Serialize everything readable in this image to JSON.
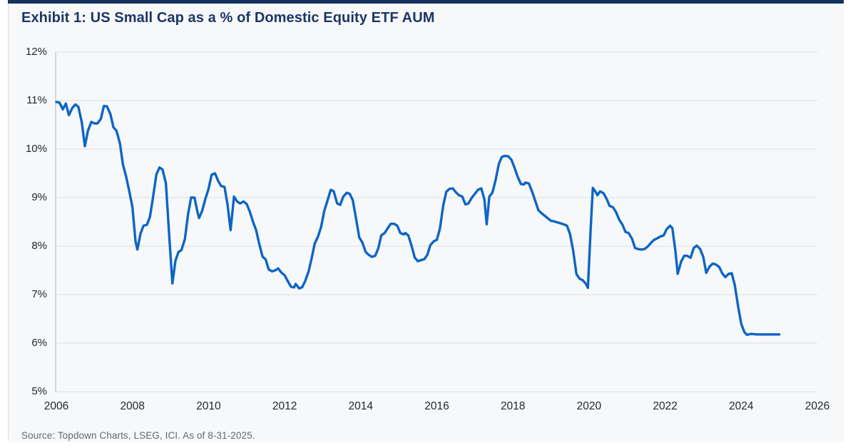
{
  "chart_data": {
    "type": "line",
    "title": "Exhibit 1: US Small Cap as a % of Domestic Equity ETF AUM",
    "source_note": "Source: Topdown Charts, LSEG, ICI. As of 8-31-2025.",
    "xlabel": "",
    "ylabel": "",
    "xlim": [
      2006,
      2026
    ],
    "ylim": [
      5,
      12
    ],
    "grid": "horizontal",
    "legend_position": "none",
    "line_color": "#0d65c5",
    "accent_color": "#16335f",
    "title_color": "#1b3666",
    "x_ticks": [
      {
        "label": "2006",
        "value": 2006
      },
      {
        "label": "2008",
        "value": 2008
      },
      {
        "label": "2010",
        "value": 2010
      },
      {
        "label": "2012",
        "value": 2012
      },
      {
        "label": "2014",
        "value": 2014
      },
      {
        "label": "2016",
        "value": 2016
      },
      {
        "label": "2018",
        "value": 2018
      },
      {
        "label": "2020",
        "value": 2020
      },
      {
        "label": "2022",
        "value": 2022
      },
      {
        "label": "2024",
        "value": 2024
      },
      {
        "label": "2026",
        "value": 2026
      }
    ],
    "y_ticks": [
      {
        "label": "12%",
        "value": 12
      },
      {
        "label": "11%",
        "value": 11
      },
      {
        "label": "10%",
        "value": 10
      },
      {
        "label": "9%",
        "value": 9
      },
      {
        "label": "8%",
        "value": 8
      },
      {
        "label": "7%",
        "value": 7
      },
      {
        "label": "6%",
        "value": 6
      },
      {
        "label": "5%",
        "value": 5
      }
    ],
    "series": [
      {
        "name": "US Small Cap % of Domestic Equity ETF AUM",
        "points": [
          [
            2006.0,
            10.97
          ],
          [
            2006.08,
            10.96
          ],
          [
            2006.17,
            10.82
          ],
          [
            2006.25,
            10.94
          ],
          [
            2006.33,
            10.7
          ],
          [
            2006.42,
            10.85
          ],
          [
            2006.5,
            10.92
          ],
          [
            2006.58,
            10.87
          ],
          [
            2006.67,
            10.55
          ],
          [
            2006.75,
            10.06
          ],
          [
            2006.83,
            10.38
          ],
          [
            2006.92,
            10.56
          ],
          [
            2007.0,
            10.53
          ],
          [
            2007.08,
            10.53
          ],
          [
            2007.17,
            10.62
          ],
          [
            2007.25,
            10.89
          ],
          [
            2007.33,
            10.88
          ],
          [
            2007.42,
            10.72
          ],
          [
            2007.5,
            10.45
          ],
          [
            2007.58,
            10.38
          ],
          [
            2007.67,
            10.12
          ],
          [
            2007.75,
            9.68
          ],
          [
            2007.83,
            9.45
          ],
          [
            2007.92,
            9.12
          ],
          [
            2008.0,
            8.8
          ],
          [
            2008.08,
            8.1
          ],
          [
            2008.13,
            7.93
          ],
          [
            2008.21,
            8.25
          ],
          [
            2008.29,
            8.42
          ],
          [
            2008.38,
            8.44
          ],
          [
            2008.46,
            8.6
          ],
          [
            2008.54,
            9.0
          ],
          [
            2008.63,
            9.48
          ],
          [
            2008.71,
            9.62
          ],
          [
            2008.79,
            9.58
          ],
          [
            2008.88,
            9.3
          ],
          [
            2008.96,
            8.3
          ],
          [
            2009.05,
            7.23
          ],
          [
            2009.13,
            7.7
          ],
          [
            2009.21,
            7.88
          ],
          [
            2009.29,
            7.92
          ],
          [
            2009.38,
            8.15
          ],
          [
            2009.46,
            8.65
          ],
          [
            2009.54,
            9.0
          ],
          [
            2009.63,
            9.0
          ],
          [
            2009.71,
            8.7
          ],
          [
            2009.75,
            8.58
          ],
          [
            2009.83,
            8.72
          ],
          [
            2009.92,
            8.98
          ],
          [
            2010.0,
            9.18
          ],
          [
            2010.08,
            9.47
          ],
          [
            2010.17,
            9.5
          ],
          [
            2010.25,
            9.35
          ],
          [
            2010.33,
            9.24
          ],
          [
            2010.42,
            9.22
          ],
          [
            2010.5,
            8.85
          ],
          [
            2010.58,
            8.33
          ],
          [
            2010.67,
            9.02
          ],
          [
            2010.75,
            8.92
          ],
          [
            2010.83,
            8.88
          ],
          [
            2010.92,
            8.92
          ],
          [
            2011.0,
            8.87
          ],
          [
            2011.08,
            8.72
          ],
          [
            2011.17,
            8.5
          ],
          [
            2011.25,
            8.33
          ],
          [
            2011.33,
            8.05
          ],
          [
            2011.42,
            7.78
          ],
          [
            2011.5,
            7.73
          ],
          [
            2011.58,
            7.52
          ],
          [
            2011.67,
            7.48
          ],
          [
            2011.75,
            7.5
          ],
          [
            2011.83,
            7.54
          ],
          [
            2011.92,
            7.45
          ],
          [
            2012.0,
            7.4
          ],
          [
            2012.08,
            7.28
          ],
          [
            2012.17,
            7.16
          ],
          [
            2012.25,
            7.15
          ],
          [
            2012.29,
            7.22
          ],
          [
            2012.38,
            7.13
          ],
          [
            2012.46,
            7.15
          ],
          [
            2012.54,
            7.28
          ],
          [
            2012.63,
            7.48
          ],
          [
            2012.71,
            7.75
          ],
          [
            2012.79,
            8.05
          ],
          [
            2012.88,
            8.2
          ],
          [
            2012.96,
            8.4
          ],
          [
            2013.04,
            8.72
          ],
          [
            2013.13,
            8.95
          ],
          [
            2013.21,
            9.16
          ],
          [
            2013.29,
            9.13
          ],
          [
            2013.38,
            8.88
          ],
          [
            2013.46,
            8.85
          ],
          [
            2013.54,
            9.02
          ],
          [
            2013.63,
            9.1
          ],
          [
            2013.71,
            9.08
          ],
          [
            2013.79,
            8.95
          ],
          [
            2013.88,
            8.55
          ],
          [
            2013.96,
            8.18
          ],
          [
            2014.04,
            8.08
          ],
          [
            2014.13,
            7.88
          ],
          [
            2014.21,
            7.82
          ],
          [
            2014.29,
            7.78
          ],
          [
            2014.38,
            7.8
          ],
          [
            2014.46,
            7.95
          ],
          [
            2014.54,
            8.22
          ],
          [
            2014.63,
            8.27
          ],
          [
            2014.71,
            8.37
          ],
          [
            2014.79,
            8.46
          ],
          [
            2014.88,
            8.46
          ],
          [
            2014.96,
            8.42
          ],
          [
            2015.04,
            8.27
          ],
          [
            2015.13,
            8.24
          ],
          [
            2015.17,
            8.27
          ],
          [
            2015.25,
            8.22
          ],
          [
            2015.33,
            8.02
          ],
          [
            2015.42,
            7.76
          ],
          [
            2015.5,
            7.69
          ],
          [
            2015.58,
            7.71
          ],
          [
            2015.67,
            7.73
          ],
          [
            2015.75,
            7.82
          ],
          [
            2015.83,
            8.02
          ],
          [
            2015.92,
            8.1
          ],
          [
            2016.0,
            8.13
          ],
          [
            2016.08,
            8.36
          ],
          [
            2016.17,
            8.85
          ],
          [
            2016.25,
            9.12
          ],
          [
            2016.33,
            9.18
          ],
          [
            2016.42,
            9.19
          ],
          [
            2016.5,
            9.11
          ],
          [
            2016.58,
            9.05
          ],
          [
            2016.67,
            9.02
          ],
          [
            2016.75,
            8.86
          ],
          [
            2016.83,
            8.88
          ],
          [
            2016.92,
            9.0
          ],
          [
            2017.0,
            9.08
          ],
          [
            2017.08,
            9.16
          ],
          [
            2017.17,
            9.19
          ],
          [
            2017.25,
            8.96
          ],
          [
            2017.31,
            8.45
          ],
          [
            2017.38,
            9.02
          ],
          [
            2017.46,
            9.1
          ],
          [
            2017.54,
            9.35
          ],
          [
            2017.63,
            9.7
          ],
          [
            2017.71,
            9.84
          ],
          [
            2017.79,
            9.86
          ],
          [
            2017.88,
            9.85
          ],
          [
            2017.96,
            9.78
          ],
          [
            2018.04,
            9.62
          ],
          [
            2018.13,
            9.42
          ],
          [
            2018.21,
            9.28
          ],
          [
            2018.29,
            9.27
          ],
          [
            2018.33,
            9.31
          ],
          [
            2018.42,
            9.29
          ],
          [
            2018.5,
            9.13
          ],
          [
            2018.58,
            8.95
          ],
          [
            2018.67,
            8.74
          ],
          [
            2018.75,
            8.68
          ],
          [
            2018.83,
            8.63
          ],
          [
            2018.92,
            8.57
          ],
          [
            2019.0,
            8.52
          ],
          [
            2019.08,
            8.51
          ],
          [
            2019.17,
            8.49
          ],
          [
            2019.25,
            8.47
          ],
          [
            2019.33,
            8.45
          ],
          [
            2019.42,
            8.42
          ],
          [
            2019.5,
            8.25
          ],
          [
            2019.58,
            7.92
          ],
          [
            2019.67,
            7.42
          ],
          [
            2019.75,
            7.33
          ],
          [
            2019.83,
            7.3
          ],
          [
            2019.92,
            7.22
          ],
          [
            2019.97,
            7.14
          ],
          [
            2020.04,
            8.3
          ],
          [
            2020.1,
            9.2
          ],
          [
            2020.17,
            9.12
          ],
          [
            2020.22,
            9.05
          ],
          [
            2020.29,
            9.13
          ],
          [
            2020.38,
            9.09
          ],
          [
            2020.46,
            8.98
          ],
          [
            2020.54,
            8.83
          ],
          [
            2020.63,
            8.8
          ],
          [
            2020.71,
            8.7
          ],
          [
            2020.79,
            8.55
          ],
          [
            2020.88,
            8.44
          ],
          [
            2020.96,
            8.29
          ],
          [
            2021.04,
            8.27
          ],
          [
            2021.13,
            8.15
          ],
          [
            2021.21,
            7.96
          ],
          [
            2021.29,
            7.94
          ],
          [
            2021.38,
            7.93
          ],
          [
            2021.46,
            7.94
          ],
          [
            2021.54,
            7.99
          ],
          [
            2021.63,
            8.07
          ],
          [
            2021.71,
            8.13
          ],
          [
            2021.79,
            8.16
          ],
          [
            2021.88,
            8.2
          ],
          [
            2021.96,
            8.22
          ],
          [
            2022.04,
            8.35
          ],
          [
            2022.13,
            8.42
          ],
          [
            2022.19,
            8.37
          ],
          [
            2022.27,
            7.9
          ],
          [
            2022.33,
            7.43
          ],
          [
            2022.42,
            7.68
          ],
          [
            2022.5,
            7.8
          ],
          [
            2022.58,
            7.8
          ],
          [
            2022.67,
            7.76
          ],
          [
            2022.75,
            7.96
          ],
          [
            2022.83,
            8.01
          ],
          [
            2022.92,
            7.94
          ],
          [
            2023.0,
            7.78
          ],
          [
            2023.08,
            7.45
          ],
          [
            2023.17,
            7.58
          ],
          [
            2023.25,
            7.64
          ],
          [
            2023.33,
            7.62
          ],
          [
            2023.42,
            7.57
          ],
          [
            2023.5,
            7.44
          ],
          [
            2023.58,
            7.36
          ],
          [
            2023.67,
            7.43
          ],
          [
            2023.75,
            7.44
          ],
          [
            2023.83,
            7.2
          ],
          [
            2023.92,
            6.75
          ],
          [
            2024.0,
            6.4
          ],
          [
            2024.08,
            6.23
          ],
          [
            2024.15,
            6.17
          ],
          [
            2024.25,
            6.19
          ],
          [
            2024.42,
            6.18
          ],
          [
            2024.58,
            6.18
          ],
          [
            2024.75,
            6.18
          ],
          [
            2024.92,
            6.18
          ],
          [
            2025.0,
            6.18
          ]
        ]
      }
    ]
  }
}
